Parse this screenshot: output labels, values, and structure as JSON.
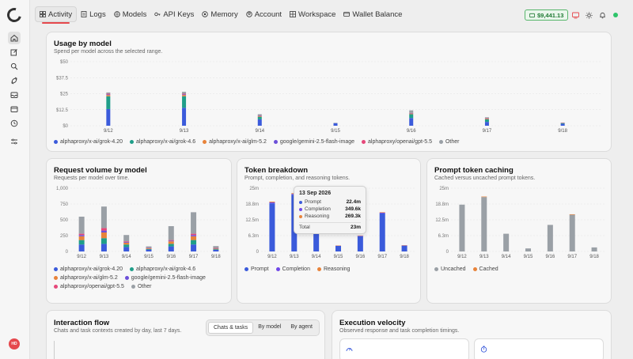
{
  "nav": {
    "items": [
      {
        "label": "Activity",
        "icon": "activity-icon",
        "active": true
      },
      {
        "label": "Logs",
        "icon": "logs-icon"
      },
      {
        "label": "Models",
        "icon": "models-icon"
      },
      {
        "label": "API Keys",
        "icon": "key-icon"
      },
      {
        "label": "Memory",
        "icon": "memory-icon"
      },
      {
        "label": "Account",
        "icon": "account-icon"
      },
      {
        "label": "Workspace",
        "icon": "workspace-icon"
      },
      {
        "label": "Wallet Balance",
        "icon": "wallet-icon"
      }
    ]
  },
  "wallet_badge": "$9,441.13",
  "user": {
    "initials": "HD"
  },
  "colors": {
    "grok420": "#3b5bdb",
    "grok46": "#1f9e89",
    "glm": "#e8833a",
    "gemini": "#6c4fd8",
    "gpt": "#e5487a",
    "other": "#9aa0a6",
    "prompt": "#3b5bdb",
    "completion": "#7048e8",
    "reasoning": "#e8833a",
    "uncached": "#9aa0a6",
    "cached": "#e8833a"
  },
  "usage": {
    "title": "Usage by model",
    "subtitle": "Spend per model across the selected range.",
    "legend": [
      "alphaproxy/x-ai/grok-4.20",
      "alphaproxy/x-ai/grok-4.6",
      "alphaproxy/x-ai/glm-5.2",
      "google/gemini-2.5-flash-image",
      "alphaproxy/openai/gpt-5.5",
      "Other"
    ],
    "chart_data": {
      "type": "bar",
      "stacked": true,
      "categories": [
        "9/12",
        "9/13",
        "9/14",
        "9/15",
        "9/16",
        "9/17",
        "9/18"
      ],
      "y_ticks": [
        "$50",
        "$37.5",
        "$25",
        "$12.5",
        "$0"
      ],
      "ylim": [
        0,
        50
      ],
      "series": [
        {
          "name": "alphaproxy/x-ai/grok-4.20",
          "values": [
            13,
            14,
            5,
            2,
            6,
            3,
            1.5
          ]
        },
        {
          "name": "alphaproxy/x-ai/grok-4.6",
          "values": [
            10,
            9,
            2,
            0,
            3,
            2,
            0.5
          ]
        },
        {
          "name": "alphaproxy/x-ai/glm-5.2",
          "values": [
            1,
            1,
            0.5,
            0,
            0.5,
            0.5,
            0
          ]
        },
        {
          "name": "google/gemini-2.5-flash-image",
          "values": [
            0.5,
            0.5,
            0.3,
            0,
            0.3,
            0.2,
            0
          ]
        },
        {
          "name": "alphaproxy/openai/gpt-5.5",
          "values": [
            0.5,
            0.5,
            0.2,
            0,
            0.2,
            0.1,
            0.2
          ]
        },
        {
          "name": "Other",
          "values": [
            1,
            1.5,
            1,
            0.3,
            2,
            0.8,
            0.3
          ]
        }
      ]
    }
  },
  "requests": {
    "title": "Request volume by model",
    "subtitle": "Requests per model over time.",
    "legend": [
      "alphaproxy/x-ai/grok-4.20",
      "alphaproxy/x-ai/grok-4.6",
      "alphaproxy/x-ai/glm-5.2",
      "google/gemini-2.5-flash-image",
      "alphaproxy/openai/gpt-5.5",
      "Other"
    ],
    "chart_data": {
      "type": "bar",
      "stacked": true,
      "categories": [
        "9/12",
        "9/13",
        "9/14",
        "9/15",
        "9/16",
        "9/17",
        "9/18"
      ],
      "y_ticks": [
        "1,000",
        "750",
        "500",
        "250",
        "0"
      ],
      "ylim": [
        0,
        1000
      ],
      "series": [
        {
          "name": "alphaproxy/x-ai/grok-4.20",
          "values": [
            110,
            120,
            70,
            30,
            80,
            110,
            25
          ]
        },
        {
          "name": "alphaproxy/x-ai/grok-4.6",
          "values": [
            70,
            90,
            40,
            10,
            40,
            70,
            10
          ]
        },
        {
          "name": "alphaproxy/x-ai/glm-5.2",
          "values": [
            60,
            90,
            30,
            10,
            40,
            60,
            10
          ]
        },
        {
          "name": "google/gemini-2.5-flash-image",
          "values": [
            20,
            30,
            10,
            5,
            10,
            20,
            5
          ]
        },
        {
          "name": "alphaproxy/openai/gpt-5.5",
          "values": [
            20,
            40,
            10,
            5,
            10,
            20,
            5
          ]
        },
        {
          "name": "Other",
          "values": [
            270,
            340,
            100,
            20,
            220,
            340,
            30
          ]
        }
      ]
    }
  },
  "tokens": {
    "title": "Token breakdown",
    "subtitle": "Prompt, completion, and reasoning tokens.",
    "legend": [
      "Prompt",
      "Completion",
      "Reasoning"
    ],
    "chart_data": {
      "type": "bar",
      "stacked": true,
      "categories": [
        "9/12",
        "9/13",
        "9/14",
        "9/15",
        "9/16",
        "9/17",
        "9/18"
      ],
      "y_ticks": [
        "25m",
        "18.8m",
        "12.5m",
        "6.3m",
        "0"
      ],
      "ylim": [
        0,
        25
      ],
      "series": [
        {
          "name": "Prompt",
          "values": [
            19,
            22.4,
            9,
            2.2,
            6,
            15,
            2.3
          ]
        },
        {
          "name": "Completion",
          "values": [
            0.4,
            0.35,
            0.2,
            0.1,
            0.2,
            0.3,
            0.1
          ]
        },
        {
          "name": "Reasoning",
          "values": [
            0.3,
            0.27,
            0.1,
            0.05,
            0.1,
            0.2,
            0.05
          ]
        }
      ]
    },
    "tooltip": {
      "date": "13 Sep 2026",
      "rows": [
        {
          "label": "Prompt",
          "value": "22.4m"
        },
        {
          "label": "Completion",
          "value": "349.6k"
        },
        {
          "label": "Reasoning",
          "value": "269.3k"
        }
      ],
      "total_label": "Total",
      "total_value": "23m"
    }
  },
  "caching": {
    "title": "Prompt token caching",
    "subtitle": "Cached versus uncached prompt tokens.",
    "legend": [
      "Uncached",
      "Cached"
    ],
    "chart_data": {
      "type": "bar",
      "stacked": true,
      "categories": [
        "9/12",
        "9/13",
        "9/14",
        "9/15",
        "9/16",
        "9/17",
        "9/18"
      ],
      "y_ticks": [
        "25m",
        "18.8m",
        "12.5m",
        "6.3m",
        "0"
      ],
      "ylim": [
        0,
        25
      ],
      "series": [
        {
          "name": "Uncached",
          "values": [
            18.5,
            21.5,
            7,
            1.2,
            10.5,
            14.5,
            1.6
          ]
        },
        {
          "name": "Cached",
          "values": [
            0,
            0.2,
            0,
            0,
            0,
            0.2,
            0
          ]
        }
      ]
    }
  },
  "interaction": {
    "title": "Interaction flow",
    "subtitle": "Chats and task contexts created by day, last 7 days.",
    "tabs": [
      "Chats & tasks",
      "By model",
      "By agent"
    ]
  },
  "velocity": {
    "title": "Execution velocity",
    "subtitle": "Observed response and task completion timings."
  }
}
